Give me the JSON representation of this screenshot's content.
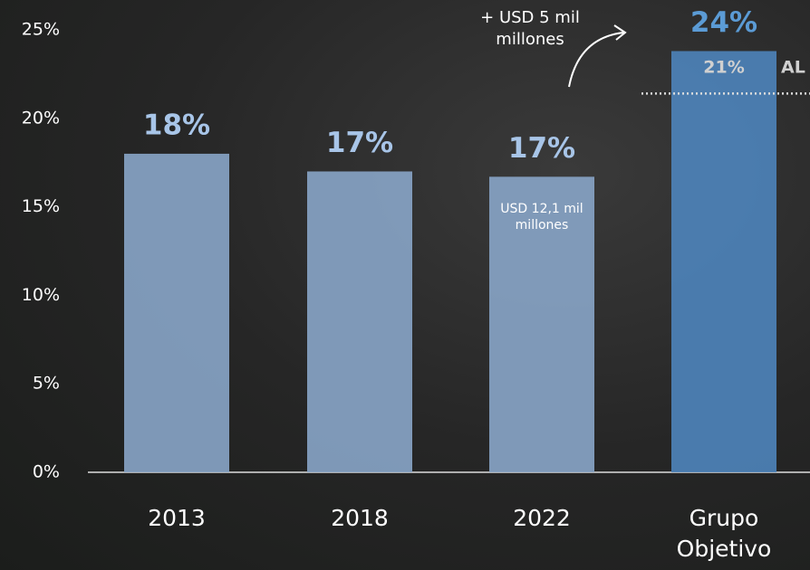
{
  "chart_data": {
    "type": "bar",
    "categories": [
      "2013",
      "2018",
      "2022",
      "Grupo Objetivo"
    ],
    "values": [
      18,
      17,
      16.7,
      23.8
    ],
    "value_labels": [
      "18%",
      "17%",
      "17%",
      "24%"
    ],
    "colors": [
      "#87a3c4",
      "#87a3c4",
      "#87a3c4",
      "#4d82b8"
    ],
    "label_colors": [
      "#a8c5e8",
      "#a8c5e8",
      "#a8c5e8",
      "#5b9bd5"
    ],
    "ylim": [
      0,
      25
    ],
    "yticks": [
      {
        "value": 0,
        "label": "0%"
      },
      {
        "value": 5,
        "label": "5%"
      },
      {
        "value": 10,
        "label": "10%"
      },
      {
        "value": 15,
        "label": "15%"
      },
      {
        "value": 20,
        "label": "20%"
      },
      {
        "value": 25,
        "label": "25%"
      }
    ],
    "reference": {
      "value": 21.4,
      "label": "21%",
      "text": "AL"
    },
    "annotations": [
      "+ USD 5 mil millones",
      "USD 12,1 mil millones"
    ]
  }
}
